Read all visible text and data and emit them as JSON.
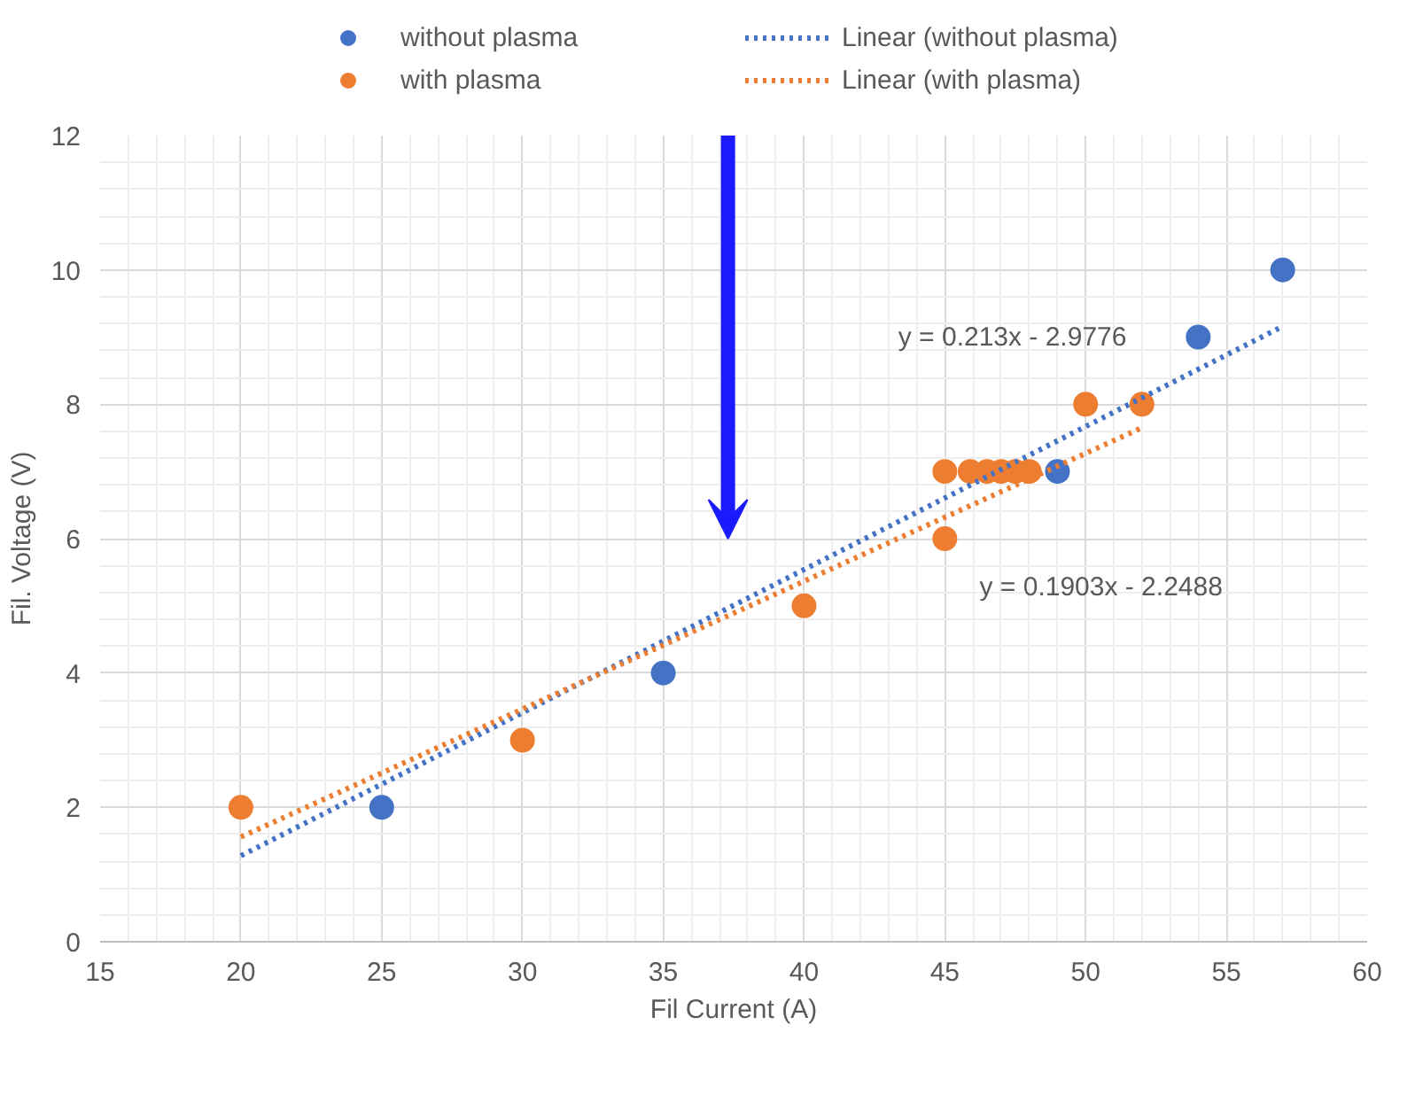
{
  "chart_data": {
    "type": "scatter",
    "xlabel": "Fil Current (A)",
    "ylabel": "Fil. Voltage (V)",
    "xlim": [
      15,
      60
    ],
    "xticks": [
      15,
      20,
      25,
      30,
      35,
      40,
      45,
      50,
      55,
      60
    ],
    "ylim": [
      0,
      12
    ],
    "yticks": [
      0,
      2,
      4,
      6,
      8,
      10,
      12
    ],
    "grid": true,
    "legend": "top",
    "series": [
      {
        "name": "without plasma",
        "color": "#4472c4",
        "x": [
          25,
          35,
          49,
          54,
          57
        ],
        "values": [
          2,
          4,
          7,
          9,
          10
        ]
      },
      {
        "name": "with plasma",
        "color": "#ed7d31",
        "x": [
          20,
          30,
          40,
          45,
          45,
          45.9,
          46.5,
          47.0,
          47.5,
          48.0,
          50,
          52
        ],
        "values": [
          2,
          3,
          5,
          6,
          7,
          7,
          7,
          7,
          7,
          7,
          8,
          8
        ]
      },
      {
        "name": "Linear (without plasma)",
        "type": "line",
        "line_style": "dotted",
        "color": "#4472c4",
        "x": [
          20,
          57
        ],
        "values": [
          1.28,
          9.16
        ]
      },
      {
        "name": "Linear (with plasma)",
        "type": "line",
        "line_style": "dotted",
        "color": "#ed7d31",
        "x": [
          20,
          52
        ],
        "values": [
          1.56,
          7.65
        ]
      }
    ],
    "annotations": [
      "y = 0.213x - 2.9776",
      "y = 0.1903x - 2.2488"
    ]
  }
}
